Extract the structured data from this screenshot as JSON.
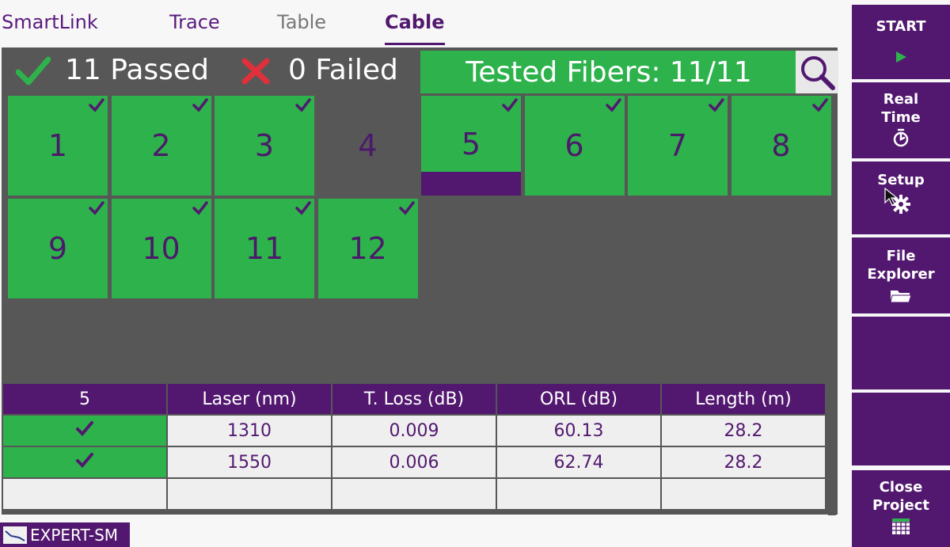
{
  "tabs": [
    {
      "label": "SmartLink",
      "state": "normal"
    },
    {
      "label": "Trace",
      "state": "normal"
    },
    {
      "label": "Table",
      "state": "inactive"
    },
    {
      "label": "Cable",
      "state": "active"
    }
  ],
  "summary": {
    "passed_text": "11 Passed",
    "failed_text": "0 Failed",
    "tested_fibers": "Tested Fibers: 11/11"
  },
  "fibers": [
    {
      "label": "1",
      "status": "passed"
    },
    {
      "label": "2",
      "status": "passed"
    },
    {
      "label": "3",
      "status": "passed"
    },
    {
      "label": "4",
      "status": "untested"
    },
    {
      "label": "5",
      "status": "passed",
      "selected": true
    },
    {
      "label": "6",
      "status": "passed"
    },
    {
      "label": "7",
      "status": "passed"
    },
    {
      "label": "8",
      "status": "passed"
    },
    {
      "label": "9",
      "status": "passed"
    },
    {
      "label": "10",
      "status": "passed"
    },
    {
      "label": "11",
      "status": "passed"
    },
    {
      "label": "12",
      "status": "passed"
    }
  ],
  "table": {
    "headers": [
      "5",
      "Laser (nm)",
      "T. Loss (dB)",
      "ORL (dB)",
      "Length (m)"
    ],
    "rows": [
      {
        "status": "pass",
        "laser": "1310",
        "loss": "0.009",
        "orl": "60.13",
        "length": "28.2"
      },
      {
        "status": "pass",
        "laser": "1550",
        "loss": "0.006",
        "orl": "62.74",
        "length": "28.2"
      },
      {
        "status": "",
        "laser": "",
        "loss": "",
        "orl": "",
        "length": ""
      }
    ]
  },
  "sidebar": {
    "start": {
      "label": "START",
      "icon": "play-icon"
    },
    "realtime": {
      "label1": "Real",
      "label2": "Time",
      "icon": "stopwatch-icon"
    },
    "setup": {
      "label": "Setup",
      "icon": "gear-icon"
    },
    "file_explorer": {
      "label1": "File",
      "label2": "Explorer",
      "icon": "folder-icon"
    },
    "close_project": {
      "label1": "Close",
      "label2": "Project",
      "icon": "grid-icon"
    }
  },
  "status_bar": {
    "label": "EXPERT-SM"
  },
  "colors": {
    "purple": "#52186f",
    "green": "#2eb24c",
    "panel_gray": "#575757",
    "fail_red": "#e0303c"
  }
}
